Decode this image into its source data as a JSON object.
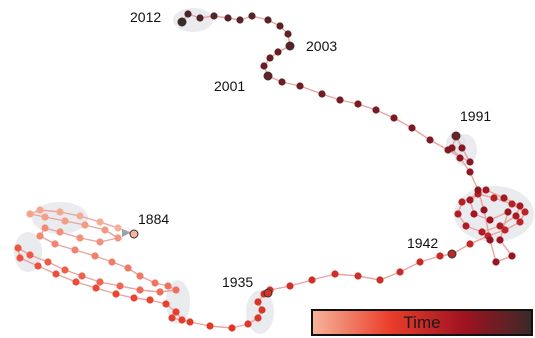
{
  "chart_data": {
    "type": "scatter",
    "title": "",
    "legend": {
      "label": "Time",
      "colors": [
        "#f6b39a",
        "#ea3f2b",
        "#9e1221",
        "#3b2a28"
      ],
      "placement": "bottom-right"
    },
    "year_labels": [
      "1884",
      "1935",
      "1942",
      "1991",
      "2001",
      "2003",
      "2012"
    ],
    "colors": {
      "trajectory": "#e9a4a0",
      "halo": "#dfe3e8",
      "marker_outline": "#333333"
    }
  }
}
